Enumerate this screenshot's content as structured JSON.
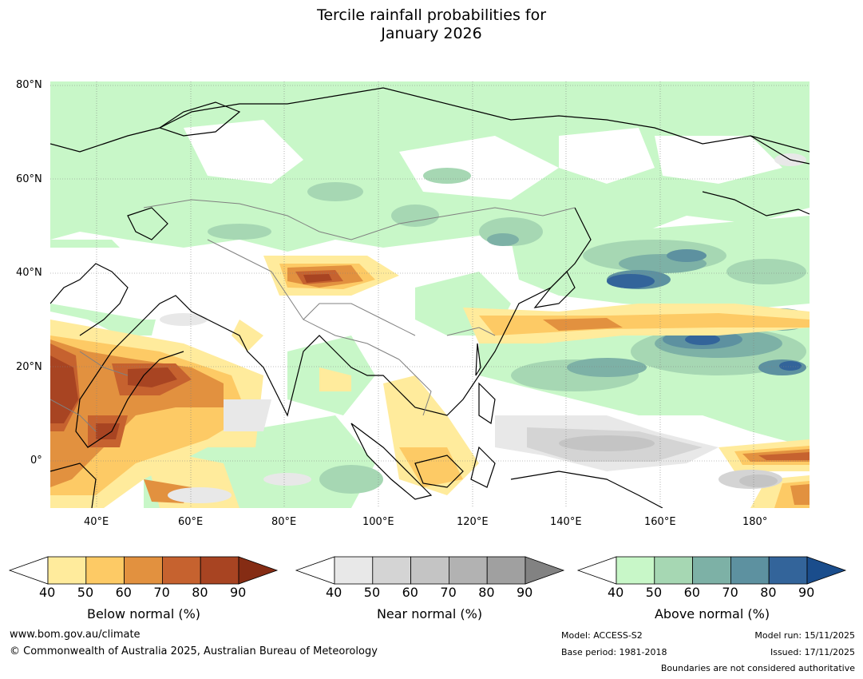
{
  "title": {
    "line1": "Tercile rainfall probabilities for",
    "line2": "January 2026"
  },
  "map": {
    "lat_labels": [
      "80°N",
      "60°N",
      "40°N",
      "20°N",
      "0°"
    ],
    "lon_labels": [
      "40°E",
      "60°E",
      "80°E",
      "100°E",
      "120°E",
      "140°E",
      "160°E",
      "180°"
    ],
    "lat_range": [
      -10,
      81
    ],
    "lon_range": [
      30,
      192
    ]
  },
  "legends": [
    {
      "name": "Below normal (%)",
      "ticks": [
        "40",
        "50",
        "60",
        "70",
        "80",
        "90"
      ],
      "colors": [
        "#ffffff",
        "#ffeb9c",
        "#fdca65",
        "#e2913f",
        "#c6622f",
        "#a84422",
        "#852c14"
      ]
    },
    {
      "name": "Near normal (%)",
      "ticks": [
        "40",
        "50",
        "60",
        "70",
        "80",
        "90"
      ],
      "colors": [
        "#ffffff",
        "#e8e8e8",
        "#d4d4d4",
        "#c4c4c4",
        "#b2b2b2",
        "#a0a0a0",
        "#828282"
      ]
    },
    {
      "name": "Above normal (%)",
      "ticks": [
        "40",
        "50",
        "60",
        "70",
        "80",
        "90"
      ],
      "colors": [
        "#ffffff",
        "#c8f7c8",
        "#a6d7b3",
        "#7db1a6",
        "#5d91a0",
        "#33649a",
        "#1a4d8c"
      ]
    }
  ],
  "footer": {
    "website": "www.bom.gov.au/climate",
    "copyright": "© Commonwealth of Australia 2025, Australian Bureau of Meteorology",
    "model": "Model: ACCESS-S2",
    "base_period": "Base period: 1981-2018",
    "model_run": "Model run: 15/11/2025",
    "issued": "Issued: 17/11/2025",
    "disclaimer": "Boundaries are not considered authoritative"
  }
}
